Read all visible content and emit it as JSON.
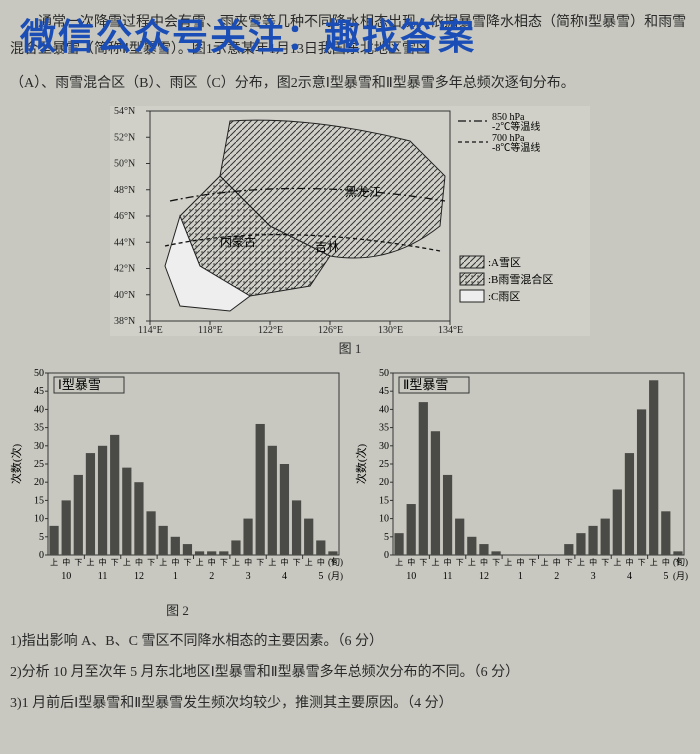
{
  "watermark": "微信公众号关注：趣找答案",
  "paragraph1": "通常一次降雪过程中会有雪、雨夹雪等几种不同降水相态出现。依据暴雪降水相态（简称Ⅰ型暴雪）和雨雪混合型暴雪（简称Ⅱ型暴雪）。图1示意某年1月13日我国东北地区雪区",
  "paragraph2": "（A）、雨雪混合区（B）、雨区（C）分布，图2示意Ⅰ型暴雪和Ⅱ型暴雪多年总频次逐旬分布。",
  "map": {
    "lat_ticks": [
      "54°N",
      "52°N",
      "50°N",
      "48°N",
      "46°N",
      "44°N",
      "42°N",
      "40°N",
      "38°N"
    ],
    "lon_ticks": [
      "114°E",
      "118°E",
      "122°E",
      "126°E",
      "130°E",
      "134°E"
    ],
    "labels": {
      "heilongjiang": "黑龙江",
      "jilin": "吉林",
      "neimenggu": "内蒙古"
    },
    "iso_labels": {
      "l850": "850 hPa",
      "t2": "-2℃等温线",
      "l700": "700 hPa",
      "t8": "-8℃等温线"
    },
    "legend": {
      "a": ":A雪区",
      "b": ":B雨雪混合区",
      "c": ":C雨区"
    },
    "caption": "图 1"
  },
  "chart_common": {
    "y_label": "次数(次)",
    "y_max": 50,
    "y_step": 5,
    "x_sub": [
      "上",
      "中",
      "下"
    ],
    "months": [
      "10",
      "11",
      "12",
      "1",
      "2",
      "3",
      "4",
      "5"
    ],
    "x_unit_sub": "(旬)",
    "x_unit_month": "(月)",
    "bar_color": "#4a4a46",
    "grid_color": "#7a7a72",
    "bg": "#d0d0c8",
    "fontsize_axis": 10,
    "fontsize_title": 13
  },
  "chart1": {
    "title": "Ⅰ型暴雪",
    "values": [
      8,
      15,
      22,
      28,
      30,
      33,
      24,
      20,
      12,
      8,
      5,
      3,
      1,
      1,
      1,
      4,
      10,
      36,
      30,
      25,
      15,
      10,
      4,
      1
    ],
    "caption": "图 2"
  },
  "chart2": {
    "title": "Ⅱ型暴雪",
    "values": [
      6,
      14,
      42,
      34,
      22,
      10,
      5,
      3,
      1,
      0,
      0,
      0,
      0,
      0,
      3,
      6,
      8,
      10,
      18,
      28,
      40,
      48,
      12,
      1
    ]
  },
  "questions": {
    "q1": "1)指出影响 A、B、C 雪区不同降水相态的主要因素。（6 分）",
    "q2": "2)分析 10 月至次年 5 月东北地区Ⅰ型暴雪和Ⅱ型暴雪多年总频次分布的不同。（6 分）",
    "q3": "3)1 月前后Ⅰ型暴雪和Ⅱ型暴雪发生频次均较少，推测其主要原因。（4 分）"
  }
}
